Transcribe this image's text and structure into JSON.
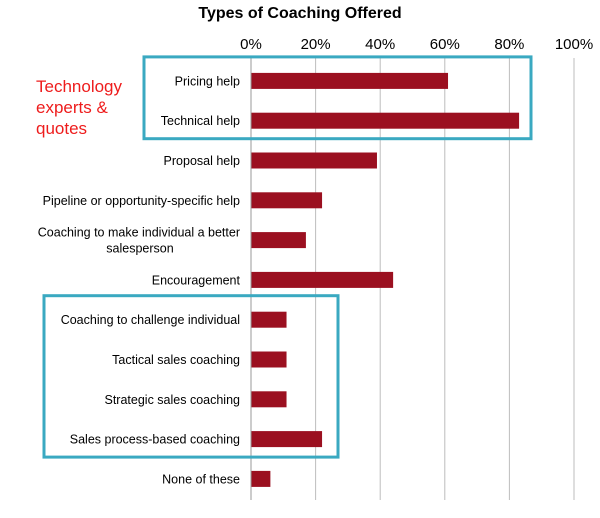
{
  "chart_data": {
    "type": "bar",
    "orientation": "horizontal",
    "title": "Types of Coaching Offered",
    "categories": [
      "Pricing help",
      "Technical help",
      "Proposal help",
      "Pipeline or opportunity-specific help",
      "Coaching to make individual a better salesperson",
      "Encouragement",
      "Coaching to challenge individual",
      "Tactical sales coaching",
      "Strategic sales coaching",
      "Sales process-based coaching",
      "None of these"
    ],
    "category_lines": [
      [
        "Pricing help"
      ],
      [
        "Technical help"
      ],
      [
        "Proposal help"
      ],
      [
        "Pipeline or opportunity-specific help"
      ],
      [
        "Coaching to make individual a better",
        "salesperson"
      ],
      [
        "Encouragement"
      ],
      [
        "Coaching to challenge individual"
      ],
      [
        "Tactical sales coaching"
      ],
      [
        "Strategic sales coaching"
      ],
      [
        "Sales process-based coaching"
      ],
      [
        "None of these"
      ]
    ],
    "values": [
      61,
      83,
      39,
      22,
      17,
      44,
      11,
      11,
      11,
      22,
      6
    ],
    "xlim": [
      0,
      100
    ],
    "xticks": [
      0,
      20,
      40,
      60,
      80,
      100
    ],
    "xtick_labels": [
      "0%",
      "20%",
      "40%",
      "60%",
      "80%",
      "100%"
    ],
    "xaxis_position": "top",
    "grid": true,
    "bar_color": "#9b1020",
    "annotation": {
      "text": "Technology experts & quotes",
      "lines": [
        "Technology",
        "experts &",
        "quotes"
      ],
      "color": "#ee1c1c"
    },
    "highlight_groups": [
      {
        "categories": [
          "Pricing help",
          "Technical help"
        ],
        "color": "#3aa9c1"
      },
      {
        "categories": [
          "Coaching to challenge individual",
          "Tactical sales coaching",
          "Strategic sales coaching",
          "Sales process-based coaching"
        ],
        "color": "#3aa9c1"
      }
    ]
  }
}
